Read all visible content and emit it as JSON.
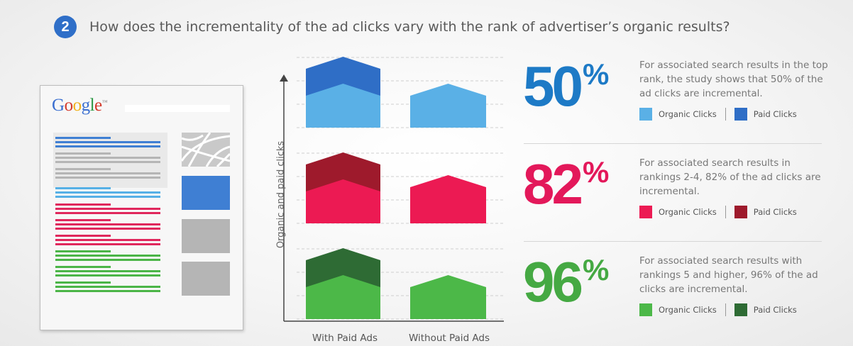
{
  "header": {
    "step_number": "2",
    "title": "How does the incrementality of the ad clicks vary with the rank of advertiser’s organic results?"
  },
  "illustration": {
    "logo_letters": [
      {
        "char": "G",
        "color": "#3b6fd0"
      },
      {
        "char": "o",
        "color": "#d33a2c"
      },
      {
        "char": "o",
        "color": "#f1b01a"
      },
      {
        "char": "g",
        "color": "#3b6fd0"
      },
      {
        "char": "l",
        "color": "#2e9a47"
      },
      {
        "char": "e",
        "color": "#d33a2c"
      }
    ],
    "logo_trademark": "™",
    "colors": {
      "ad_lines": "#3f7fd3",
      "ad_gray": "#b5b5b5",
      "tier1": "#56b0e6",
      "tier2": "#e0275c",
      "tier3": "#4bb547",
      "side_blue": "#3f7fd3",
      "side_gray": "#b5b5b5"
    }
  },
  "chart_data": {
    "type": "bar",
    "ylabel": "Organic and paid clicks",
    "categories": [
      "With Paid Ads",
      "Without Paid Ads"
    ],
    "y_axis_arrow": true,
    "grid": "dashed horizontal",
    "panels": [
      {
        "rank": "top rank",
        "organic": [
          62,
          62
        ],
        "paid_on_top": [
          38,
          0
        ],
        "organic_color": "#5ab0e6",
        "paid_color": "#2f6ec6"
      },
      {
        "rank": "rankings 2-4",
        "organic": [
          62,
          68
        ],
        "paid_on_top": [
          38,
          0
        ],
        "organic_color": "#ec1a53",
        "paid_color": "#9e1a2c"
      },
      {
        "rank": "rankings 5 and higher",
        "organic": [
          62,
          62
        ],
        "paid_on_top": [
          38,
          0
        ],
        "organic_color": "#4cb848",
        "paid_color": "#2e6b34"
      }
    ]
  },
  "stats": [
    {
      "number": "50",
      "sign": "%",
      "color": "#1d7ac6",
      "description": "For associated search results in the top rank, the study shows that 50% of the ad clicks are incremental.",
      "legend": [
        {
          "label": "Organic Clicks",
          "color": "#5ab0e6"
        },
        {
          "label": "Paid Clicks",
          "color": "#2f6ec6"
        }
      ]
    },
    {
      "number": "82",
      "sign": "%",
      "color": "#e3185a",
      "description": "For associated search results in rankings 2-4, 82% of the ad clicks are incremental.",
      "legend": [
        {
          "label": "Organic Clicks",
          "color": "#ec1a53"
        },
        {
          "label": "Paid Clicks",
          "color": "#9e1a2c"
        }
      ]
    },
    {
      "number": "96",
      "sign": "%",
      "color": "#45a943",
      "description": "For associated search results with rankings 5 and higher, 96% of the ad clicks are incremental.",
      "legend": [
        {
          "label": "Organic Clicks",
          "color": "#4cb848"
        },
        {
          "label": "Paid Clicks",
          "color": "#2e6b34"
        }
      ]
    }
  ]
}
